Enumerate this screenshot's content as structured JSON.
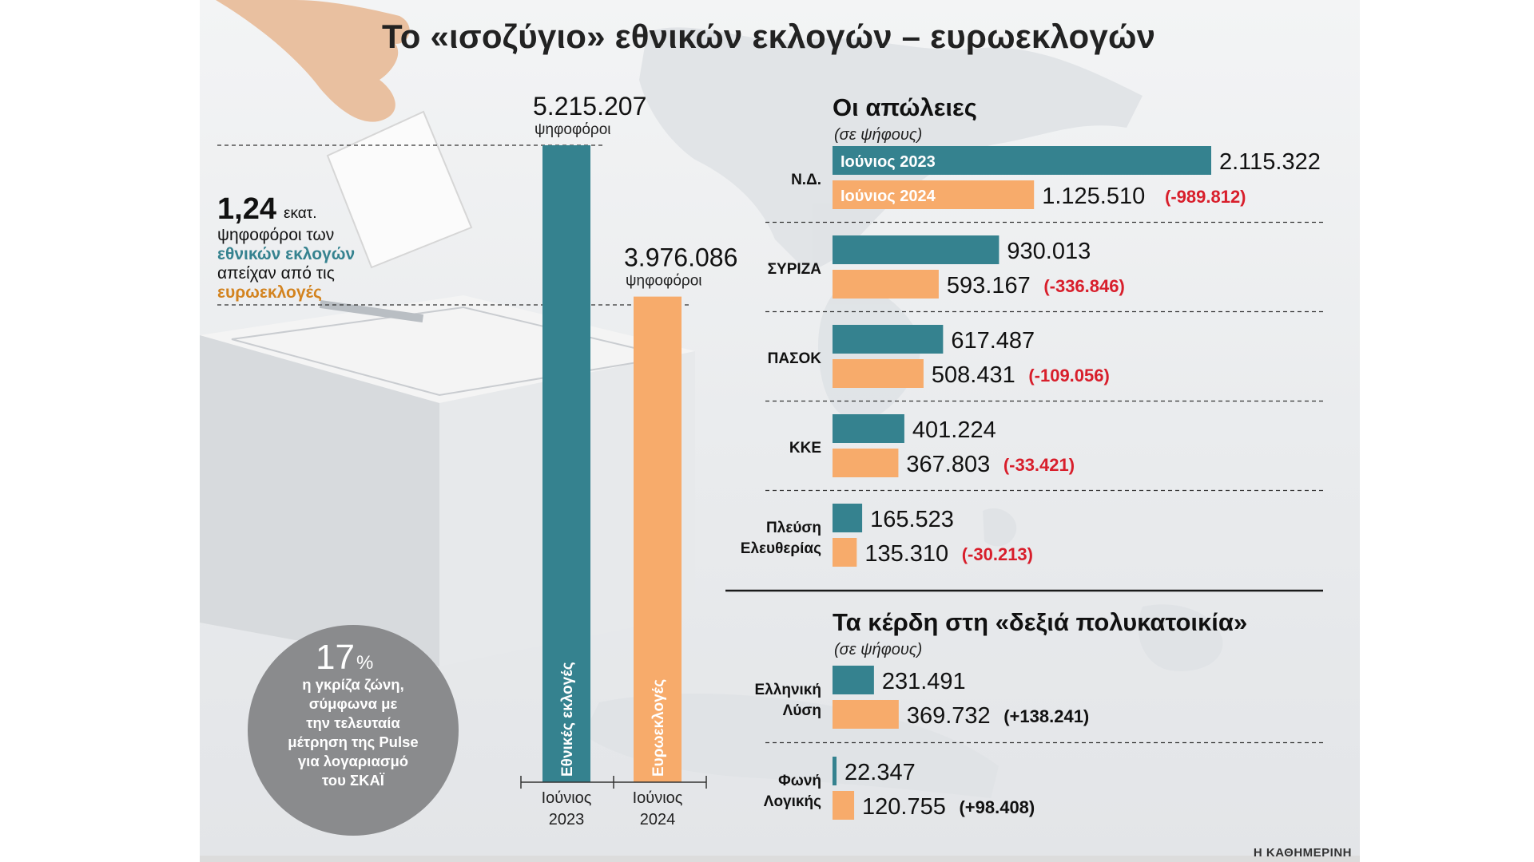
{
  "title": "Το «ισοζύγιο» εθνικών εκλογών – ευρωεκλογών",
  "credit": "Η ΚΑΘΗΜΕΡΙΝΗ",
  "colors": {
    "teal": "#35828f",
    "orange": "#f7ab6b",
    "red": "#d81e2b",
    "grey_circle": "#8a8b8d"
  },
  "left_note": {
    "big": "1,24",
    "unit": "εκατ.",
    "line1": "ψηφοφόροι των",
    "highlight1": "εθνικών εκλογών",
    "line3": "απείχαν από τις",
    "highlight2": "ευρωεκλογές"
  },
  "circle": {
    "percent": "17",
    "percent_sign": "%",
    "lines": [
      "η γκρίζα ζώνη,",
      "σύμφωνα με",
      "την τελευταία",
      "μέτρηση της Pulse",
      "για λογαριασμό",
      "του ΣΚΑΪ"
    ]
  },
  "chart_data": [
    {
      "type": "bar",
      "title": "",
      "categories": [
        "Ιούνιος 2023",
        "Ιούνιος 2024"
      ],
      "x_labels": [
        [
          "Ιούνιος",
          "2023"
        ],
        [
          "Ιούνιος",
          "2024"
        ]
      ],
      "bar_labels": [
        "Εθνικές εκλογές",
        "Ευρωεκλογές"
      ],
      "values": [
        5215207,
        3976086
      ],
      "value_labels": [
        "5.215.207",
        "3.976.086"
      ],
      "unit_label": "ψηφοφόροι",
      "ylim": [
        0,
        5215207
      ]
    },
    {
      "type": "bar",
      "orientation": "horizontal",
      "title": "Οι απώλειες",
      "subtitle": "(σε ψήφους)",
      "series": [
        {
          "name": "Ιούνιος 2023",
          "values": [
            2115322,
            930013,
            617487,
            401224,
            165523
          ]
        },
        {
          "name": "Ιούνιος 2024",
          "values": [
            1125510,
            593167,
            508431,
            367803,
            135310
          ]
        }
      ],
      "groups": [
        {
          "label": [
            "Ν.Δ."
          ],
          "v2023": 2115322,
          "v2024": 1125510,
          "t2023": "2.115.322",
          "t2024": "1.125.510",
          "diff": "(-989.812)"
        },
        {
          "label": [
            "ΣΥΡΙΖΑ"
          ],
          "v2023": 930013,
          "v2024": 593167,
          "t2023": "930.013",
          "t2024": "593.167",
          "diff": "(-336.846)"
        },
        {
          "label": [
            "ΠΑΣΟΚ"
          ],
          "v2023": 617487,
          "v2024": 508431,
          "t2023": "617.487",
          "t2024": "508.431",
          "diff": "(-109.056)"
        },
        {
          "label": [
            "ΚΚΕ"
          ],
          "v2023": 401224,
          "v2024": 367803,
          "t2023": "401.224",
          "t2024": "367.803",
          "diff": "(-33.421)"
        },
        {
          "label": [
            "Πλεύση",
            "Ελευθερίας"
          ],
          "v2023": 165523,
          "v2024": 135310,
          "t2023": "165.523",
          "t2024": "135.310",
          "diff": "(-30.213)"
        }
      ],
      "xlim": [
        0,
        2115322
      ]
    },
    {
      "type": "bar",
      "orientation": "horizontal",
      "title": "Τα κέρδη στη «δεξιά πολυκατοικία»",
      "subtitle": "(σε ψήφους)",
      "series": [
        {
          "name": "Ιούνιος 2023",
          "values": [
            231491,
            22347
          ]
        },
        {
          "name": "Ιούνιος 2024",
          "values": [
            369732,
            120755
          ]
        }
      ],
      "groups": [
        {
          "label": [
            "Ελληνική",
            "Λύση"
          ],
          "v2023": 231491,
          "v2024": 369732,
          "t2023": "231.491",
          "t2024": "369.732",
          "diff": "(+138.241)"
        },
        {
          "label": [
            "Φωνή",
            "Λογικής"
          ],
          "v2023": 22347,
          "v2024": 120755,
          "t2023": "22.347",
          "t2024": "120.755",
          "diff": "(+98.408)"
        }
      ],
      "xlim": [
        0,
        2115322
      ]
    }
  ]
}
